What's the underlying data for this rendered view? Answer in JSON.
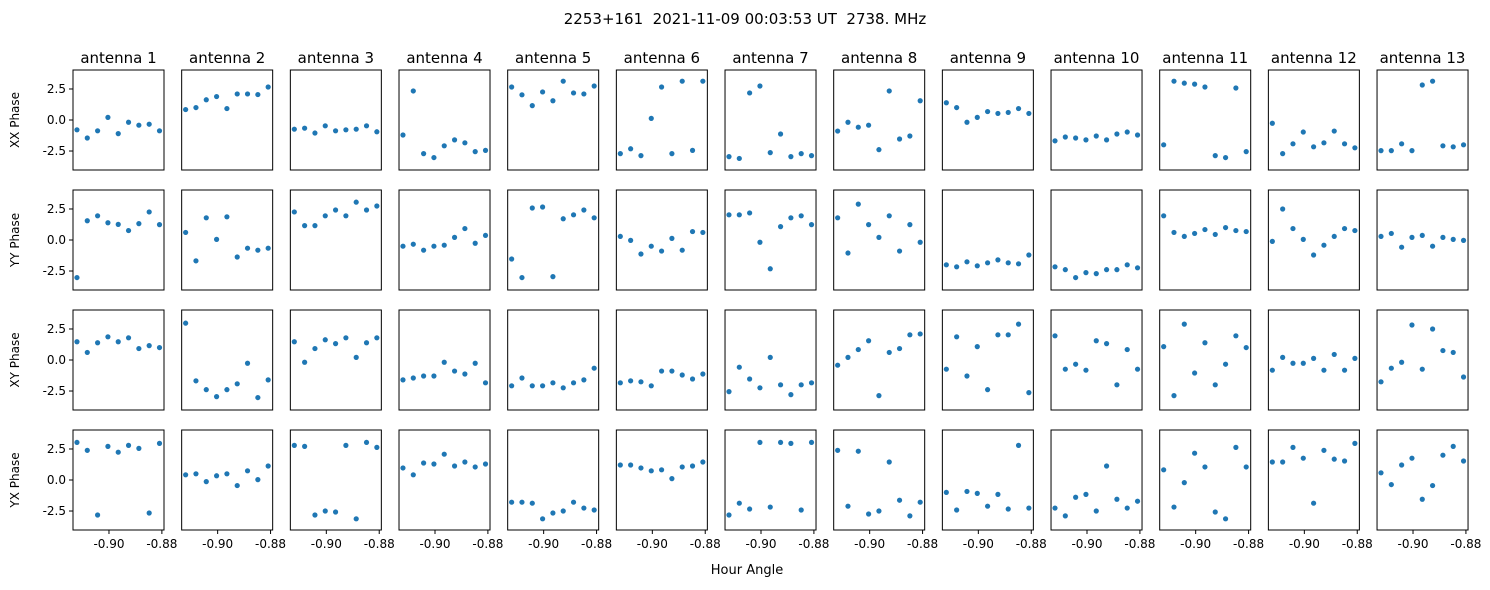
{
  "chart_data": {
    "type": "scatter",
    "title": "2253+161  2021-11-09 00:03:53 UT  2738. MHz",
    "xlabel": "Hour Angle",
    "xlim": [
      -0.9136,
      -0.8792
    ],
    "ylim": [
      -4.03,
      4.03
    ],
    "xticks": [
      -0.9,
      -0.88
    ],
    "xtick_labels": [
      "-0.90",
      "-0.88"
    ],
    "yticks": [
      2.5,
      0.0,
      -2.5
    ],
    "ytick_labels": [
      "2.5",
      "0.0",
      "-2.5"
    ],
    "grid": false,
    "marker_color": "#1f77b4",
    "x": [
      -0.9121,
      -0.9082,
      -0.9043,
      -0.9004,
      -0.8965,
      -0.8926,
      -0.8887,
      -0.8848,
      -0.8809
    ],
    "columns": [
      "antenna 1",
      "antenna 2",
      "antenna 3",
      "antenna 4",
      "antenna 5",
      "antenna 6",
      "antenna 7",
      "antenna 8",
      "antenna 9",
      "antenna 10",
      "antenna 11",
      "antenna 12",
      "antenna 13"
    ],
    "rows": [
      {
        "ylabel": "XX Phase",
        "series": [
          [
            -0.79,
            -1.45,
            -0.87,
            0.21,
            -1.1,
            -0.18,
            -0.42,
            -0.34,
            -0.87
          ],
          [
            0.84,
            1.0,
            1.63,
            1.89,
            0.92,
            2.1,
            2.1,
            2.05,
            2.66
          ],
          [
            -0.74,
            -0.66,
            -1.05,
            -0.47,
            -0.87,
            -0.79,
            -0.74,
            -0.47,
            -0.95
          ],
          [
            -1.21,
            2.34,
            -2.71,
            -3.03,
            -2.08,
            -1.6,
            -1.84,
            -2.55,
            -2.45
          ],
          [
            2.66,
            2.03,
            1.16,
            2.26,
            1.55,
            3.13,
            2.18,
            2.1,
            2.74
          ],
          [
            -2.71,
            -2.32,
            -2.87,
            0.13,
            2.66,
            -2.71,
            3.13,
            -2.45,
            3.13
          ],
          [
            -2.95,
            -3.1,
            2.18,
            2.74,
            -2.63,
            -1.13,
            -2.95,
            -2.71,
            -2.87
          ],
          [
            -0.89,
            -0.18,
            -0.58,
            -0.42,
            -2.39,
            2.34,
            -1.53,
            -1.29,
            1.55
          ],
          [
            1.39,
            1.0,
            -0.18,
            0.21,
            0.68,
            0.53,
            0.61,
            0.92,
            0.53
          ],
          [
            -1.68,
            -1.37,
            -1.45,
            -1.6,
            -1.29,
            -1.6,
            -1.13,
            -0.97,
            -1.21
          ],
          [
            -2.0,
            3.13,
            2.97,
            2.89,
            2.66,
            -2.87,
            -3.03,
            2.58,
            -2.55
          ],
          [
            -0.26,
            -2.71,
            -1.92,
            -0.97,
            -2.16,
            -1.84,
            -0.89,
            -1.92,
            -2.24
          ],
          [
            -2.47,
            -2.47,
            -1.92,
            -2.47,
            2.82,
            3.13,
            -2.08,
            -2.16,
            -2.0
          ]
        ]
      },
      {
        "ylabel": "YY Phase",
        "series": [
          [
            -3.03,
            1.55,
            1.95,
            1.39,
            1.26,
            0.76,
            1.32,
            2.26,
            1.24
          ],
          [
            0.61,
            -1.68,
            1.79,
            0.05,
            1.87,
            -1.37,
            -0.66,
            -0.82,
            -0.66
          ],
          [
            2.26,
            1.16,
            1.16,
            1.95,
            2.42,
            1.95,
            3.05,
            2.42,
            2.74
          ],
          [
            -0.5,
            -0.34,
            -0.82,
            -0.5,
            -0.42,
            0.21,
            0.92,
            -0.26,
            0.37
          ],
          [
            -1.53,
            -3.03,
            2.58,
            2.66,
            -2.95,
            1.71,
            2.03,
            2.42,
            1.79
          ],
          [
            0.29,
            -0.03,
            -1.13,
            -0.5,
            -0.89,
            0.13,
            -0.82,
            0.68,
            0.61
          ],
          [
            2.03,
            2.03,
            2.18,
            -0.18,
            -2.32,
            1.08,
            1.79,
            1.95,
            1.24
          ],
          [
            1.79,
            -1.05,
            2.89,
            1.24,
            0.21,
            1.95,
            -0.89,
            1.24,
            -0.18
          ],
          [
            -2.0,
            -2.16,
            -1.76,
            -2.08,
            -1.84,
            -1.6,
            -1.84,
            -1.92,
            -1.21
          ],
          [
            -2.16,
            -2.39,
            -3.03,
            -2.63,
            -2.71,
            -2.39,
            -2.39,
            -2.0,
            -2.24
          ],
          [
            1.95,
            0.61,
            0.29,
            0.53,
            0.84,
            0.45,
            1.0,
            0.76,
            0.68
          ],
          [
            -0.11,
            2.5,
            0.92,
            0.05,
            -1.21,
            -0.42,
            0.29,
            0.92,
            0.76
          ],
          [
            0.29,
            0.53,
            -0.58,
            0.21,
            0.37,
            -0.5,
            0.21,
            0.05,
            -0.03
          ]
        ]
      },
      {
        "ylabel": "XY Phase",
        "series": [
          [
            1.47,
            0.61,
            1.39,
            1.87,
            1.47,
            1.79,
            0.92,
            1.16,
            1.0
          ],
          [
            2.97,
            -1.68,
            -2.39,
            -2.95,
            -2.39,
            -1.92,
            -0.26,
            -3.03,
            -1.6
          ],
          [
            1.47,
            -0.18,
            0.92,
            1.63,
            1.32,
            1.79,
            0.21,
            1.39,
            1.79
          ],
          [
            -1.6,
            -1.45,
            -1.29,
            -1.29,
            -0.18,
            -0.89,
            -1.13,
            -0.26,
            -1.84
          ],
          [
            -2.08,
            -1.45,
            -2.08,
            -2.08,
            -1.84,
            -2.24,
            -1.84,
            -1.6,
            -0.66
          ],
          [
            -1.84,
            -1.68,
            -1.76,
            -2.08,
            -0.89,
            -0.89,
            -1.21,
            -1.53,
            -1.13
          ],
          [
            -2.55,
            -0.58,
            -1.53,
            -2.24,
            0.21,
            -2.0,
            -2.79,
            -2.0,
            -1.84
          ],
          [
            -0.42,
            0.21,
            0.84,
            1.55,
            -2.87,
            0.61,
            0.92,
            2.03,
            2.1
          ],
          [
            -0.74,
            1.87,
            -1.29,
            1.08,
            -2.39,
            2.03,
            2.03,
            2.89,
            -2.63
          ],
          [
            1.95,
            -0.74,
            -0.34,
            -0.82,
            1.55,
            1.32,
            -2.0,
            0.84,
            -0.74
          ],
          [
            1.08,
            -2.87,
            2.89,
            -1.05,
            1.39,
            -2.0,
            -0.34,
            1.95,
            1.0
          ],
          [
            -0.82,
            0.21,
            -0.26,
            -0.26,
            0.13,
            -0.82,
            0.45,
            -0.82,
            0.13
          ],
          [
            -1.76,
            -0.66,
            -0.18,
            2.82,
            -0.74,
            2.5,
            0.76,
            0.61,
            -1.37
          ]
        ]
      },
      {
        "ylabel": "YX Phase",
        "series": [
          [
            3.03,
            2.39,
            -2.82,
            2.71,
            2.24,
            2.79,
            2.55,
            -2.66,
            2.95
          ],
          [
            0.42,
            0.5,
            -0.13,
            0.34,
            0.5,
            -0.45,
            0.74,
            0.03,
            1.13
          ],
          [
            2.79,
            2.71,
            -2.82,
            -2.5,
            -2.58,
            2.79,
            -3.13,
            3.03,
            2.63
          ],
          [
            0.97,
            0.42,
            1.37,
            1.29,
            2.08,
            1.13,
            1.45,
            1.05,
            1.29
          ],
          [
            -1.79,
            -1.79,
            -1.87,
            -3.13,
            -2.66,
            -2.5,
            -1.79,
            -2.26,
            -2.42
          ],
          [
            1.21,
            1.21,
            0.97,
            0.74,
            0.82,
            0.11,
            1.05,
            1.13,
            1.45
          ],
          [
            -2.82,
            -1.87,
            -2.34,
            3.03,
            -2.18,
            3.03,
            2.95,
            -2.42,
            3.03
          ],
          [
            2.39,
            -2.11,
            2.32,
            -2.74,
            -2.5,
            1.45,
            -1.63,
            -2.89,
            -1.79
          ],
          [
            -1.0,
            -2.42,
            -0.92,
            -1.08,
            -2.11,
            -1.16,
            -2.34,
            2.79,
            -2.26
          ],
          [
            -2.26,
            -2.89,
            -1.39,
            -1.16,
            -2.5,
            1.13,
            -1.55,
            -2.26,
            -1.71
          ],
          [
            0.82,
            -2.18,
            -0.21,
            2.16,
            1.05,
            -2.58,
            -3.13,
            2.63,
            1.05
          ],
          [
            1.45,
            1.45,
            2.63,
            1.76,
            -1.87,
            2.39,
            1.68,
            1.53,
            2.95
          ],
          [
            0.58,
            -0.37,
            1.21,
            1.76,
            -1.55,
            -0.45,
            2.0,
            2.71,
            1.53
          ]
        ]
      }
    ]
  }
}
